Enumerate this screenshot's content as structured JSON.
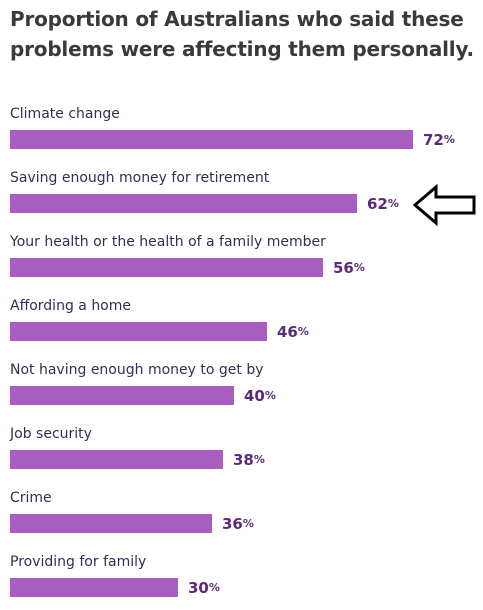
{
  "title": "Proportion of Australians who said these problems were affecting them personally.",
  "colors": {
    "bar": "#a95fbf",
    "value_text": "#5b2a78",
    "label_text": "#3a2a55",
    "title_text": "#3a3a3a"
  },
  "annotation": {
    "icon": "left-arrow-icon",
    "points_to": "Saving enough money for retirement"
  },
  "chart_data": {
    "type": "bar",
    "orientation": "horizontal",
    "categories": [
      "Climate change",
      "Saving enough money for retirement",
      "Your health or the health of a family member",
      "Affording a home",
      "Not having enough money to get by",
      "Job security",
      "Crime",
      "Providing for family"
    ],
    "values": [
      72,
      62,
      56,
      46,
      40,
      38,
      36,
      30
    ],
    "value_suffix": "%",
    "xlim": [
      0,
      72
    ],
    "grid": false,
    "legend": "none"
  }
}
